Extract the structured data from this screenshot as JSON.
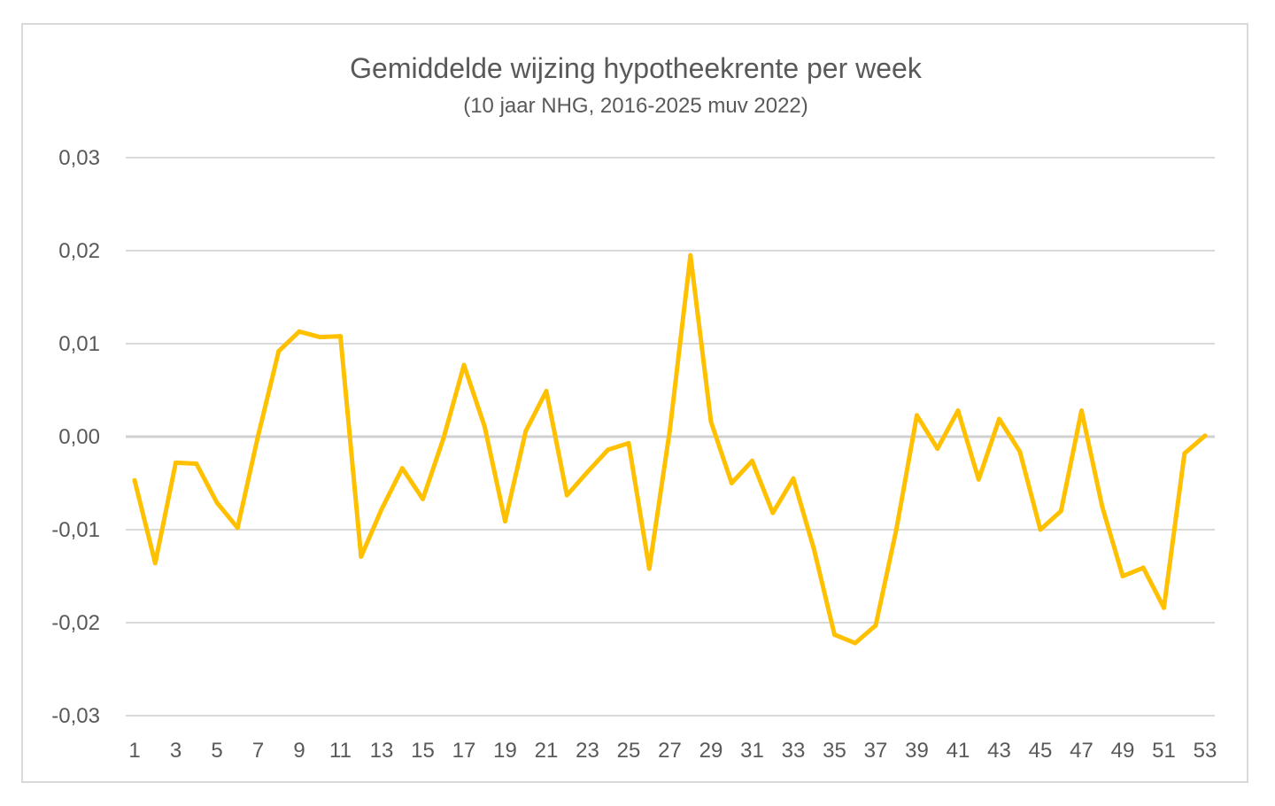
{
  "chart_data": {
    "type": "line",
    "title": "Gemiddelde wijzing hypotheekrente per week",
    "subtitle": "(10 jaar NHG, 2016-2025 muv 2022)",
    "xlabel": "",
    "ylabel": "",
    "ylim": [
      -0.03,
      0.03
    ],
    "y_ticks": [
      0.03,
      0.02,
      0.01,
      0.0,
      -0.01,
      -0.02,
      -0.03
    ],
    "y_tick_labels": [
      "0,03",
      "0,02",
      "0,01",
      "0,00",
      "-0,01",
      "-0,02",
      "-0,03"
    ],
    "x_tick_labels": [
      "1",
      "3",
      "5",
      "7",
      "9",
      "11",
      "13",
      "15",
      "17",
      "19",
      "21",
      "23",
      "25",
      "27",
      "29",
      "31",
      "33",
      "35",
      "37",
      "39",
      "41",
      "43",
      "45",
      "47",
      "49",
      "51",
      "53"
    ],
    "grid": true,
    "legend": "none",
    "color": "#FFC000",
    "series": [
      {
        "x": [
          1,
          2,
          3,
          4,
          5,
          6,
          7,
          8,
          9,
          10,
          11,
          12,
          13,
          14,
          15,
          16,
          17,
          18,
          19,
          20,
          21,
          22,
          23,
          24,
          25,
          26,
          27,
          28,
          29,
          30,
          31,
          32,
          33,
          34,
          35,
          36,
          37,
          38,
          39,
          40,
          41,
          42,
          43,
          44,
          45,
          46,
          47,
          48,
          49,
          50,
          51,
          52,
          53
        ],
        "values": [
          -0.0047,
          -0.0136,
          -0.0028,
          -0.0029,
          -0.0071,
          -0.0098,
          0.0001,
          0.0092,
          0.0113,
          0.0107,
          0.0108,
          -0.0129,
          -0.0078,
          -0.0034,
          -0.0067,
          -0.0002,
          0.0077,
          0.0011,
          -0.0091,
          0.0006,
          0.0049,
          -0.0063,
          -0.0038,
          -0.0014,
          -0.0007,
          -0.0142,
          0.0007,
          0.0195,
          0.0016,
          -0.005,
          -0.0026,
          -0.0082,
          -0.0045,
          -0.0121,
          -0.0213,
          -0.0222,
          -0.0203,
          -0.01,
          0.0023,
          -0.0013,
          0.0028,
          -0.0046,
          0.0019,
          -0.0016,
          -0.01,
          -0.008,
          0.0028,
          -0.0075,
          -0.015,
          -0.0141,
          -0.0184,
          -0.0018,
          0.0001
        ]
      }
    ]
  }
}
